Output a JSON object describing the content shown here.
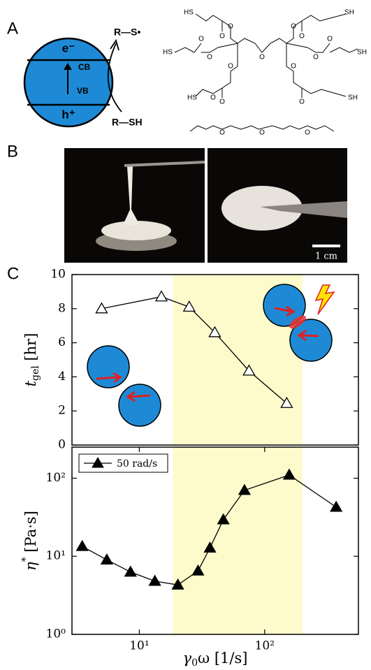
{
  "panel_labels": [
    "A",
    "B",
    "C"
  ],
  "panel_a": {
    "electron": "e⁻",
    "cb": "CB",
    "vb": "VB",
    "hole": "h⁺",
    "product": "R—S•",
    "reactant": "R—SH",
    "structure_labels": [
      "HS",
      "O",
      "O",
      "SH",
      "O",
      "O",
      "HS",
      "O",
      "O",
      "O",
      "O",
      "O",
      "SH",
      "O",
      "O",
      "HS",
      "O",
      "O",
      "SH",
      "O",
      "O",
      "O",
      "O"
    ]
  },
  "panel_b": {
    "scale_bar": "1 cm"
  },
  "chart_data": [
    {
      "type": "line",
      "xscale": "log",
      "xlim": [
        2.9,
        560
      ],
      "ylim": [
        0,
        10
      ],
      "yticks": [
        0,
        2,
        4,
        6,
        8,
        10
      ],
      "ylabel": {
        "main": "t",
        "sub": "gel",
        "rest": " [hr]"
      },
      "shaded_region": [
        18.5,
        200
      ],
      "shade_color": "#fdfbcc",
      "x": [
        5,
        15,
        25,
        40,
        75,
        150
      ],
      "series": [
        {
          "marker": "open-triangle",
          "color": "#000000",
          "values": [
            8.0,
            8.7,
            8.1,
            6.6,
            4.35,
            2.45
          ]
        }
      ]
    },
    {
      "type": "line",
      "xscale": "log",
      "yscale": "log",
      "xlim": [
        2.9,
        560
      ],
      "ylim": [
        1,
        250
      ],
      "yticks": [
        {
          "value": 1,
          "label": "10⁰"
        },
        {
          "value": 10,
          "label": "10¹"
        },
        {
          "value": 100,
          "label": "10²"
        }
      ],
      "xticks": [
        {
          "value": 10,
          "label": "10¹"
        },
        {
          "value": 100,
          "label": "10²"
        }
      ],
      "ylabel": {
        "main": "η",
        "sup": "*",
        "rest": " [Pa·s]"
      },
      "xlabel": {
        "main": "γ",
        "sub": "0",
        "rest": "ω [1/s]"
      },
      "shaded_region": [
        18.5,
        200
      ],
      "shade_color": "#fdfbcc",
      "legend": "upper left",
      "x": [
        3.5,
        5.5,
        8.5,
        13.3,
        20.3,
        29.4,
        36.6,
        46.8,
        69,
        157,
        372
      ],
      "series": [
        {
          "name": "50 rad/s",
          "marker": "filled-triangle",
          "color": "#000000",
          "values": [
            13.4,
            9.0,
            6.3,
            4.8,
            4.3,
            6.5,
            12.8,
            29.4,
            70,
            110,
            42.6
          ]
        }
      ]
    }
  ]
}
